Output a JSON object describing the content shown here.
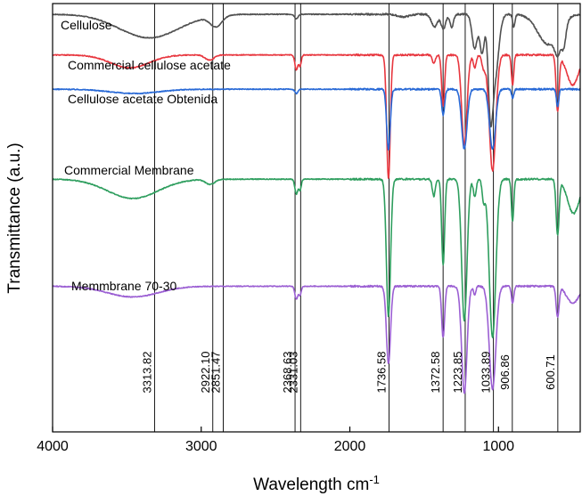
{
  "chart_data": {
    "type": "line",
    "title": "",
    "xlabel": "Wavelength cm",
    "xlabel_superscript": "-1",
    "ylabel": "Transmittance (a.u.)",
    "xlim": [
      4000,
      450
    ],
    "x_reversed": true,
    "xticks": [
      4000,
      3000,
      2000,
      1000
    ],
    "yticks_shown": false,
    "peak_markers": [
      {
        "x": 3313.82,
        "label": "3313.82"
      },
      {
        "x": 2922.1,
        "label": "2922.10"
      },
      {
        "x": 2851.47,
        "label": "2851.47"
      },
      {
        "x": 2368.63,
        "label": "2368.63"
      },
      {
        "x": 2331.03,
        "label": "2331.03"
      },
      {
        "x": 1736.58,
        "label": "1736.58"
      },
      {
        "x": 1372.58,
        "label": "1372.58"
      },
      {
        "x": 1223.85,
        "label": "1223.85"
      },
      {
        "x": 1033.89,
        "label": "1033.89"
      },
      {
        "x": 906.86,
        "label": "906.86"
      },
      {
        "x": 600.71,
        "label": "600.71"
      }
    ],
    "series": [
      {
        "name": "Cellulose",
        "color": "#505050",
        "baseline": 0.975,
        "dips": [
          [
            3350,
            200,
            0.055
          ],
          [
            2900,
            40,
            0.025
          ],
          [
            2360,
            12,
            0.01
          ],
          [
            1640,
            40,
            0.006
          ],
          [
            1430,
            20,
            0.03
          ],
          [
            1370,
            15,
            0.035
          ],
          [
            1315,
            12,
            0.03
          ],
          [
            1160,
            18,
            0.08
          ],
          [
            1110,
            15,
            0.09
          ],
          [
            1055,
            15,
            0.18
          ],
          [
            1025,
            25,
            0.15
          ],
          [
            897,
            8,
            0.03
          ],
          [
            665,
            70,
            0.07
          ],
          [
            600,
            20,
            0.05
          ],
          [
            560,
            15,
            0.05
          ]
        ]
      },
      {
        "name": "Commercial cellulose acetate",
        "color": "#e8373f",
        "baseline": 0.88,
        "dips": [
          [
            3480,
            130,
            0.03
          ],
          [
            2945,
            30,
            0.012
          ],
          [
            2360,
            10,
            0.035
          ],
          [
            2335,
            8,
            0.025
          ],
          [
            1740,
            12,
            0.29
          ],
          [
            1435,
            10,
            0.02
          ],
          [
            1372,
            10,
            0.12
          ],
          [
            1230,
            18,
            0.21
          ],
          [
            1160,
            10,
            0.03
          ],
          [
            1100,
            12,
            0.03
          ],
          [
            1040,
            22,
            0.27
          ],
          [
            905,
            8,
            0.07
          ],
          [
            602,
            10,
            0.13
          ],
          [
            500,
            40,
            0.07
          ]
        ]
      },
      {
        "name": "Cellulose acetate Obtenida",
        "color": "#2869d6",
        "baseline": 0.8,
        "dips": [
          [
            3450,
            160,
            0.01
          ],
          [
            2360,
            10,
            0.01
          ],
          [
            1740,
            12,
            0.14
          ],
          [
            1372,
            10,
            0.06
          ],
          [
            1230,
            18,
            0.14
          ],
          [
            1040,
            20,
            0.14
          ],
          [
            905,
            8,
            0.02
          ],
          [
            602,
            8,
            0.04
          ]
        ]
      },
      {
        "name": "Commercial Membrane",
        "color": "#2e9e5e",
        "baseline": 0.59,
        "dips": [
          [
            3460,
            170,
            0.045
          ],
          [
            2940,
            30,
            0.012
          ],
          [
            2360,
            10,
            0.035
          ],
          [
            2335,
            8,
            0.025
          ],
          [
            1740,
            14,
            0.32
          ],
          [
            1435,
            10,
            0.04
          ],
          [
            1372,
            10,
            0.2
          ],
          [
            1230,
            18,
            0.33
          ],
          [
            1160,
            10,
            0.04
          ],
          [
            1100,
            10,
            0.05
          ],
          [
            1040,
            22,
            0.37
          ],
          [
            905,
            8,
            0.1
          ],
          [
            602,
            10,
            0.13
          ],
          [
            495,
            40,
            0.08
          ]
        ]
      },
      {
        "name": "Memmbrane 70-30",
        "color": "#9b5fd3",
        "baseline": 0.34,
        "dips": [
          [
            3460,
            170,
            0.025
          ],
          [
            2360,
            10,
            0.03
          ],
          [
            2335,
            8,
            0.02
          ],
          [
            1740,
            14,
            0.18
          ],
          [
            1372,
            10,
            0.12
          ],
          [
            1230,
            18,
            0.25
          ],
          [
            1160,
            8,
            0.02
          ],
          [
            1040,
            22,
            0.24
          ],
          [
            905,
            8,
            0.04
          ],
          [
            602,
            10,
            0.07
          ],
          [
            500,
            40,
            0.04
          ]
        ]
      }
    ]
  }
}
